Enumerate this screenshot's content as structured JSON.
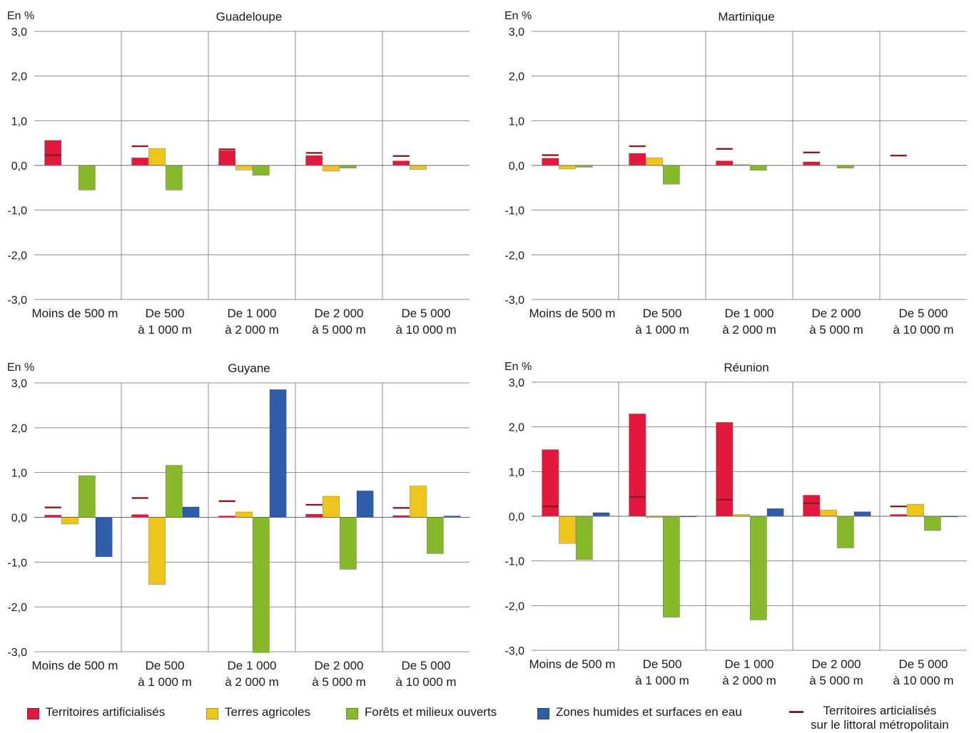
{
  "colors": {
    "territoires": "#e2183c",
    "agricoles": "#f0c51b",
    "forets": "#86b92c",
    "zones_humides": "#2e5da9",
    "littoral": "#8b1a1a",
    "grid": "#8c8c8c"
  },
  "chart_data": [
    {
      "type": "bar",
      "title": "Guadeloupe",
      "ylabel": "En %",
      "ylim": [
        -3,
        3
      ],
      "yticks": [
        "3,0",
        "2,0",
        "1,0",
        "0,0",
        "-1,0",
        "-2,0",
        "-3,0"
      ],
      "categories": [
        [
          "Moins de 500 m",
          ""
        ],
        [
          "De 500",
          "à 1 000 m"
        ],
        [
          "De 1 000",
          "à 2 000 m"
        ],
        [
          "De 2 000",
          "à 5 000 m"
        ],
        [
          "De 5 000",
          "à 10 000 m"
        ]
      ],
      "series": [
        {
          "name": "Territoires artificialisés",
          "values": [
            0.56,
            0.17,
            0.33,
            0.22,
            0.1
          ]
        },
        {
          "name": "Terres agricoles",
          "values": [
            0,
            0.38,
            -0.1,
            -0.13,
            -0.09
          ]
        },
        {
          "name": "Forêts et milieux ouverts",
          "values": [
            -0.55,
            -0.55,
            -0.22,
            -0.06,
            0
          ]
        },
        {
          "name": "Zones humides et surfaces en eau",
          "values": [
            0,
            0,
            0,
            0,
            0
          ]
        }
      ],
      "reference": {
        "name": "Territoires articialisés sur le littoral métropolitain",
        "values": [
          0.23,
          0.43,
          0.36,
          0.28,
          0.21
        ]
      }
    },
    {
      "type": "bar",
      "title": "Martinique",
      "ylabel": "En %",
      "ylim": [
        -3,
        3
      ],
      "yticks": [
        "3,0",
        "2,0",
        "1,0",
        "0,0",
        "-1,0",
        "-2,0",
        "-3,0"
      ],
      "categories": [
        [
          "Moins de 500 m",
          ""
        ],
        [
          "De 500",
          "à 1 000 m"
        ],
        [
          "De 1 000",
          "à 2 000 m"
        ],
        [
          "De 2 000",
          "à 5 000 m"
        ],
        [
          "De 5 000",
          "à 10 000 m"
        ]
      ],
      "series": [
        {
          "name": "Territoires artificialisés",
          "values": [
            0.16,
            0.27,
            0.1,
            0.08,
            0
          ]
        },
        {
          "name": "Terres agricoles",
          "values": [
            -0.08,
            0.17,
            0.02,
            0,
            0
          ]
        },
        {
          "name": "Forêts et milieux ouverts",
          "values": [
            -0.04,
            -0.42,
            -0.11,
            -0.06,
            0
          ]
        },
        {
          "name": "Zones humides et surfaces en eau",
          "values": [
            0,
            0,
            0,
            0,
            0
          ]
        }
      ],
      "reference": {
        "name": "Territoires articialisés sur le littoral métropolitain",
        "values": [
          0.23,
          0.43,
          0.37,
          0.29,
          0.22
        ]
      }
    },
    {
      "type": "bar",
      "title": "Guyane",
      "ylabel": "En %",
      "ylim": [
        -3,
        3
      ],
      "yticks": [
        "3,0",
        "2,0",
        "1,0",
        "0,0",
        "-1,0",
        "-2,0",
        "-3,0"
      ],
      "categories": [
        [
          "Moins de 500 m",
          ""
        ],
        [
          "De 500",
          "à 1 000 m"
        ],
        [
          "De 1 000",
          "à 2 000 m"
        ],
        [
          "De 2 000",
          "à 5 000 m"
        ],
        [
          "De 5 000",
          "à 10 000 m"
        ]
      ],
      "series": [
        {
          "name": "Territoires artificialisés",
          "values": [
            0.05,
            0.06,
            0.03,
            0.07,
            0.04
          ]
        },
        {
          "name": "Terres agricoles",
          "values": [
            -0.15,
            -1.5,
            0.12,
            0.47,
            0.7
          ]
        },
        {
          "name": "Forêts et milieux ouverts",
          "values": [
            0.93,
            1.16,
            -3.02,
            -1.16,
            -0.81
          ]
        },
        {
          "name": "Zones humides et surfaces en eau",
          "values": [
            -0.88,
            0.23,
            2.85,
            0.59,
            0.03
          ]
        }
      ],
      "reference": {
        "name": "Territoires articialisés sur le littoral métropolitain",
        "values": [
          0.22,
          0.43,
          0.36,
          0.28,
          0.21
        ]
      }
    },
    {
      "type": "bar",
      "title": "Réunion",
      "ylabel": "En %",
      "ylim": [
        -3,
        3
      ],
      "yticks": [
        "3,0",
        "2,0",
        "1,0",
        "0,0",
        "-1,0",
        "-2,0",
        "-3,0"
      ],
      "categories": [
        [
          "Moins de 500 m",
          ""
        ],
        [
          "De 500",
          "à 1 000 m"
        ],
        [
          "De 1 000",
          "à 2 000 m"
        ],
        [
          "De 2 000",
          "à 5 000 m"
        ],
        [
          "De 5 000",
          "à 10 000 m"
        ]
      ],
      "series": [
        {
          "name": "Territoires artificialisés",
          "values": [
            1.49,
            2.29,
            2.1,
            0.47,
            0.04
          ]
        },
        {
          "name": "Terres agricoles",
          "values": [
            -0.61,
            -0.03,
            0.04,
            0.14,
            0.27
          ]
        },
        {
          "name": "Forêts et milieux ouverts",
          "values": [
            -0.97,
            -2.26,
            -2.32,
            -0.71,
            -0.32
          ]
        },
        {
          "name": "Zones humides et surfaces en eau",
          "values": [
            0.08,
            -0.01,
            0.17,
            0.1,
            -0.01
          ]
        }
      ],
      "reference": {
        "name": "Territoires articialisés sur le littoral métropolitain",
        "values": [
          0.22,
          0.43,
          0.37,
          0.29,
          0.22
        ]
      }
    }
  ],
  "legend": {
    "territoires": "Territoires artificialisés",
    "agricoles": "Terres agricoles",
    "forets": "Forêts et milieux ouverts",
    "zones_humides": "Zones humides et surfaces en eau",
    "littoral_line1": "Territoires articialisés",
    "littoral_line2": "sur le littoral métropolitain"
  }
}
